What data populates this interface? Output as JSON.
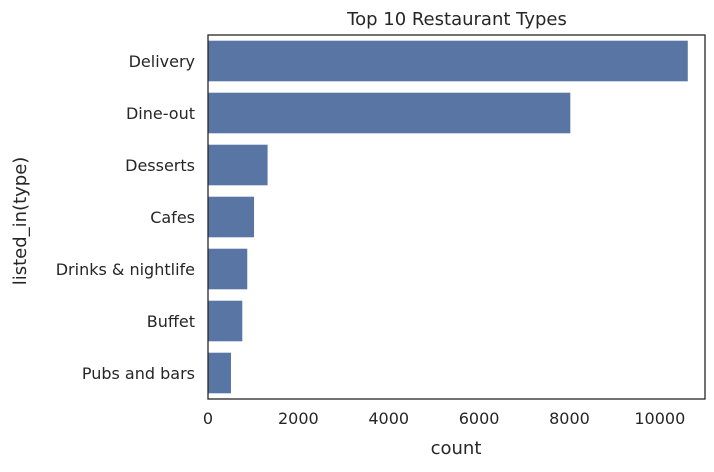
{
  "chart_data": {
    "type": "bar",
    "orientation": "horizontal",
    "title": "Top 10 Restaurant Types",
    "xlabel": "count",
    "ylabel": "listed_in(type)",
    "categories": [
      "Delivery",
      "Dine-out",
      "Desserts",
      "Cafes",
      "Drinks & nightlife",
      "Buffet",
      "Pubs and bars"
    ],
    "values": [
      10630,
      8030,
      1330,
      1030,
      880,
      770,
      520
    ],
    "xlim": [
      0,
      11000
    ],
    "xticks": [
      0,
      2000,
      4000,
      6000,
      8000,
      10000
    ],
    "grid": false,
    "bar_color": "#5975a4"
  }
}
